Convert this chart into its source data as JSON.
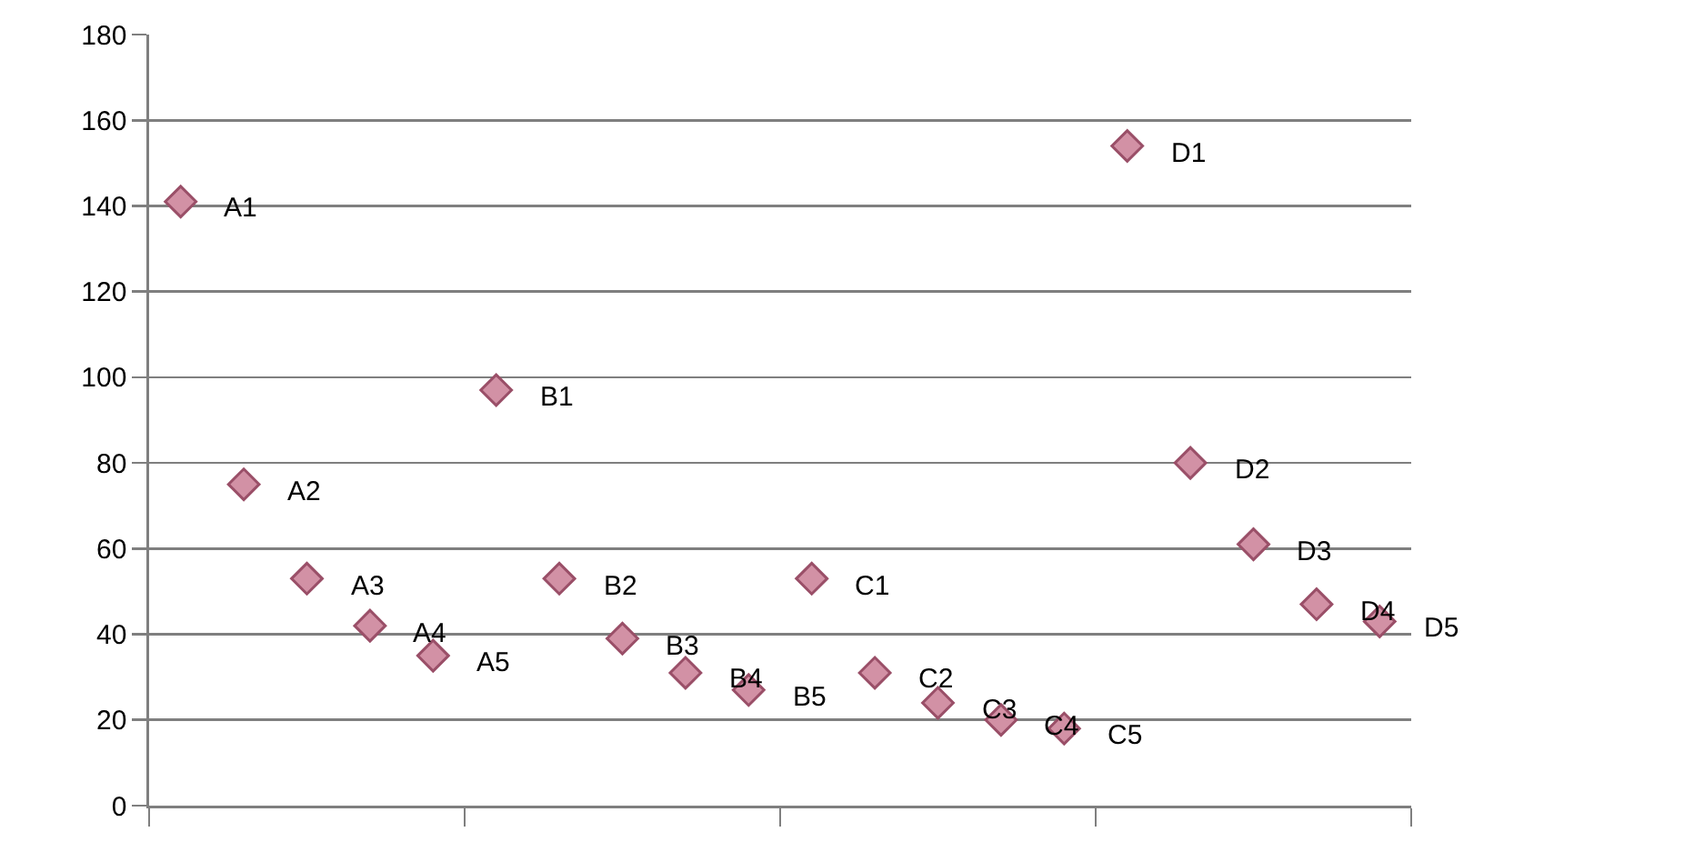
{
  "chart_data": {
    "type": "scatter",
    "categories": [
      null,
      null,
      null,
      null,
      null,
      null,
      null,
      null,
      null,
      null,
      null,
      null,
      null,
      null,
      null,
      null,
      null,
      null,
      null,
      null
    ],
    "series": [
      {
        "color": "#d291a5",
        "values": [
          141,
          75,
          53,
          42,
          35,
          97,
          53,
          39,
          31,
          27,
          53,
          31,
          24,
          20,
          18,
          154,
          80,
          61,
          47,
          43
        ],
        "value_labels": [
          "A1",
          "A2",
          "A3",
          "A4",
          "A5",
          "B1",
          "B2",
          "B3",
          "B4",
          "B5",
          "C1",
          "C2",
          "C3",
          "C4",
          "C5",
          "D1",
          "D2",
          "D3",
          "D4",
          "D5"
        ]
      }
    ],
    "marker": "diamond",
    "grid": "y",
    "ylim": [
      0,
      180
    ],
    "yticks": [
      0,
      20,
      40,
      60,
      80,
      100,
      120,
      140,
      160,
      180
    ]
  }
}
